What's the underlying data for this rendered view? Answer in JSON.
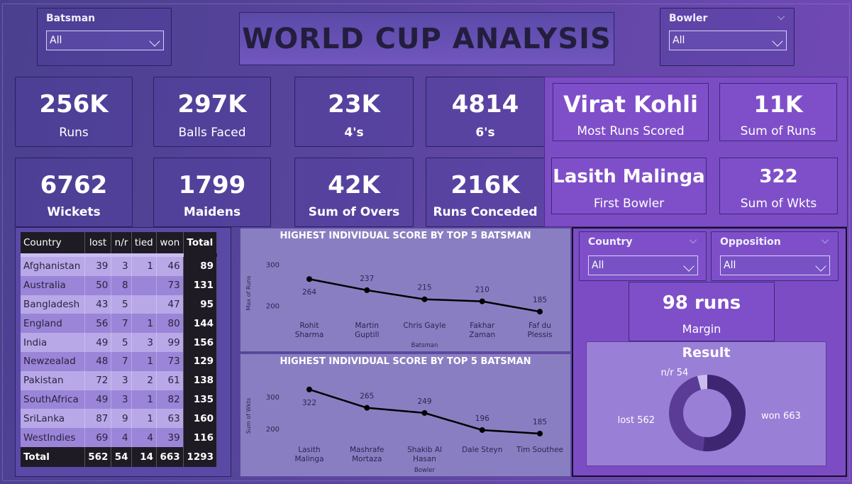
{
  "title": "WORLD CUP ANALYSIS",
  "batsman_slicer": {
    "label": "Batsman",
    "value": "All"
  },
  "bowler_slicer": {
    "label": "Bowler",
    "value": "All"
  },
  "kpis": [
    {
      "value": "256K",
      "label": "Runs"
    },
    {
      "value": "297K",
      "label": "Balls Faced"
    },
    {
      "value": "23K",
      "label": "4's"
    },
    {
      "value": "4814",
      "label": "6's"
    },
    {
      "value": "6762",
      "label": "Wickets"
    },
    {
      "value": "1799",
      "label": "Maidens"
    },
    {
      "value": "42K",
      "label": "Sum of Overs"
    },
    {
      "value": "216K",
      "label": "Runs Conceded"
    }
  ],
  "top_cards": {
    "most_runs": {
      "value": "Virat Kohli",
      "label": "Most Runs Scored"
    },
    "sum_runs": {
      "value": "11K",
      "label": "Sum of Runs"
    },
    "first_bowler": {
      "value": "Lasith Malinga",
      "label": "First Bowler"
    },
    "sum_wkts": {
      "value": "322",
      "label": "Sum of Wkts"
    }
  },
  "results_table": {
    "headers": [
      "Country",
      "lost",
      "n/r",
      "tied",
      "won",
      "Total"
    ],
    "rows": [
      [
        "Afghanistan",
        "39",
        "3",
        "1",
        "46",
        "89"
      ],
      [
        "Australia",
        "50",
        "8",
        "",
        "73",
        "131"
      ],
      [
        "Bangladesh",
        "43",
        "5",
        "",
        "47",
        "95"
      ],
      [
        "England",
        "56",
        "7",
        "1",
        "80",
        "144"
      ],
      [
        "India",
        "49",
        "5",
        "3",
        "99",
        "156"
      ],
      [
        "Newzealad",
        "48",
        "7",
        "1",
        "73",
        "129"
      ],
      [
        "Pakistan",
        "72",
        "3",
        "2",
        "61",
        "138"
      ],
      [
        "SouthAfrica",
        "49",
        "3",
        "1",
        "82",
        "135"
      ],
      [
        "SriLanka",
        "87",
        "9",
        "1",
        "63",
        "160"
      ],
      [
        "WestIndies",
        "69",
        "4",
        "4",
        "39",
        "116"
      ]
    ],
    "total": [
      "Total",
      "562",
      "54",
      "14",
      "663",
      "1293"
    ]
  },
  "chart_data": [
    {
      "type": "line",
      "title": "HIGHEST INDIVIDUAL SCORE BY TOP 5 BATSMAN",
      "xlabel": "Batsman",
      "ylabel": "Max of Runs",
      "categories": [
        [
          "Rohit",
          "Sharma"
        ],
        [
          "Martin",
          "Guptill"
        ],
        [
          "Chris Gayle"
        ],
        [
          "Fakhar",
          "Zaman"
        ],
        [
          "Faf du",
          "Plessis"
        ]
      ],
      "values": [
        264,
        237,
        215,
        210,
        185
      ],
      "yticks": [
        200,
        300
      ],
      "ylim": [
        125,
        335
      ]
    },
    {
      "type": "line",
      "title": "HIGHEST INDIVIDUAL SCORE BY TOP 5 BATSMAN",
      "xlabel": "Bowler",
      "ylabel": "Sum of Wkts",
      "categories": [
        [
          "Lasith",
          "Malinga"
        ],
        [
          "Mashrafe",
          "Mortaza"
        ],
        [
          "Shakib Al",
          "Hasan"
        ],
        [
          "Dale Steyn"
        ],
        [
          "Tim Southee"
        ]
      ],
      "values": [
        322,
        265,
        249,
        196,
        185
      ],
      "yticks": [
        200,
        300
      ],
      "ylim": [
        110,
        370
      ]
    },
    {
      "type": "pie",
      "title": "Result",
      "labels": [
        "won",
        "lost",
        "n/r"
      ],
      "values": [
        663,
        562,
        54
      ],
      "display_labels": [
        "won 663",
        "lost 562",
        "n/r 54"
      ],
      "colors": [
        "#3f2672",
        "#5a3b96",
        "#c9bdf0"
      ]
    }
  ],
  "country_slicer": {
    "label": "Country",
    "value": "All"
  },
  "opposition_slicer": {
    "label": "Opposition",
    "value": "All"
  },
  "margin_card": {
    "value": "98 runs",
    "label": "Margin"
  }
}
